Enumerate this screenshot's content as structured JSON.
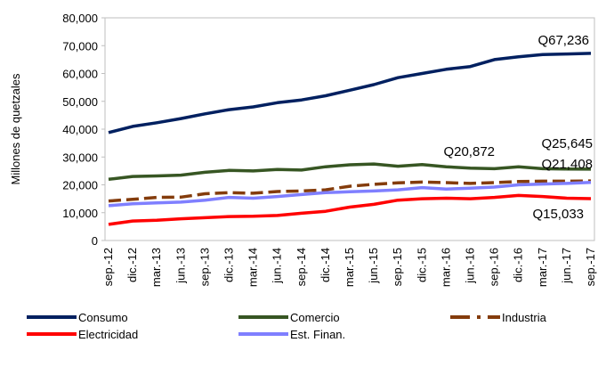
{
  "chart_data": {
    "type": "line",
    "y_label": "Millones de quetzales",
    "categories": [
      "sep.-12",
      "dic.-12",
      "mar.-13",
      "jun.-13",
      "sep.-13",
      "dic.-13",
      "mar.-14",
      "jun.-14",
      "sep.-14",
      "dic.-14",
      "mar.-15",
      "jun.-15",
      "sep.-15",
      "dic.-15",
      "mar.-16",
      "jun.-16",
      "sep.-16",
      "dic.-16",
      "mar.-17",
      "jun.-17",
      "sep.-17"
    ],
    "ylim": [
      0,
      80000
    ],
    "yticks": [
      0,
      {
        "value": 10000,
        "label": "10,000"
      },
      {
        "value": 20000,
        "label": "20,000"
      },
      {
        "value": 30000,
        "label": "30,000"
      },
      {
        "value": 40000,
        "label": "40,000"
      },
      {
        "value": 50000,
        "label": "50,000"
      },
      {
        "value": 60000,
        "label": "60,000"
      },
      {
        "value": 70000,
        "label": "70,000"
      },
      {
        "value": 80000,
        "label": "80,000"
      }
    ],
    "grid": false,
    "legend": "bottom",
    "series": [
      {
        "name": "Consumo",
        "color": "#002060",
        "values": [
          38800,
          41000,
          42300,
          43800,
          45500,
          47000,
          48000,
          49500,
          50500,
          52000,
          54000,
          56000,
          58500,
          60000,
          61500,
          62500,
          65000,
          66000,
          66800,
          67000,
          67236
        ],
        "value_labels": [
          null,
          null,
          null,
          null,
          null,
          null,
          null,
          null,
          null,
          null,
          null,
          null,
          null,
          null,
          null,
          null,
          null,
          null,
          null,
          null,
          "Q67,236"
        ]
      },
      {
        "name": "Comercio",
        "color": "#375623",
        "values": [
          22000,
          23000,
          23200,
          23500,
          24500,
          25200,
          25000,
          25500,
          25300,
          26500,
          27200,
          27500,
          26700,
          27300,
          26500,
          26000,
          25800,
          26500,
          25800,
          25700,
          25645
        ],
        "value_labels": [
          null,
          null,
          null,
          null,
          null,
          null,
          null,
          null,
          null,
          null,
          null,
          null,
          null,
          null,
          null,
          null,
          null,
          null,
          null,
          null,
          "Q25,645"
        ]
      },
      {
        "name": "Industria",
        "color": "#843c0c",
        "dashed": true,
        "values": [
          14200,
          14800,
          15500,
          15600,
          16800,
          17200,
          17000,
          17600,
          17800,
          18200,
          19500,
          20200,
          20700,
          21000,
          20800,
          20500,
          20800,
          21200,
          21300,
          21300,
          21408
        ],
        "value_labels": [
          null,
          null,
          null,
          null,
          null,
          null,
          null,
          null,
          null,
          null,
          null,
          null,
          null,
          null,
          null,
          null,
          null,
          null,
          null,
          null,
          "Q21,408"
        ]
      },
      {
        "name": "Electricidad",
        "color": "#ff0000",
        "values": [
          5800,
          7000,
          7300,
          7800,
          8200,
          8600,
          8700,
          9000,
          9800,
          10500,
          12000,
          13000,
          14500,
          15000,
          15200,
          15000,
          15500,
          16200,
          15800,
          15200,
          15033
        ],
        "value_labels": [
          null,
          null,
          null,
          null,
          null,
          null,
          null,
          null,
          null,
          null,
          null,
          null,
          null,
          null,
          null,
          null,
          null,
          null,
          null,
          null,
          "Q15,033"
        ]
      },
      {
        "name": "Est. Finan.",
        "color": "#7f7fff",
        "values": [
          12500,
          13200,
          13500,
          13800,
          14500,
          15500,
          15200,
          15800,
          16500,
          17200,
          17500,
          17800,
          18200,
          19000,
          18500,
          18800,
          19200,
          20000,
          20300,
          20500,
          20872
        ],
        "value_labels": [
          null,
          null,
          null,
          null,
          null,
          null,
          null,
          null,
          null,
          null,
          null,
          null,
          null,
          null,
          null,
          null,
          null,
          null,
          null,
          null,
          "Q20,872"
        ]
      }
    ]
  }
}
